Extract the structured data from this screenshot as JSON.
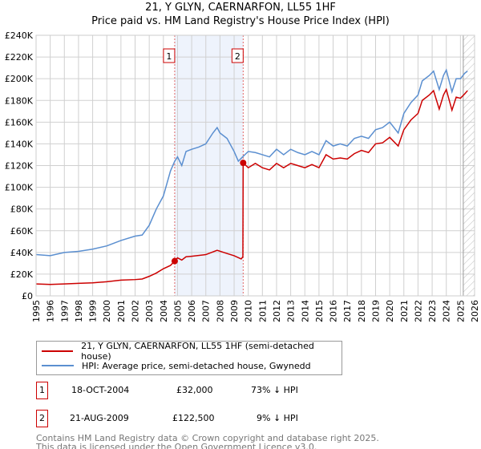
{
  "chart_data": {
    "type": "line",
    "title": "21, Y GLYN, CAERNARFON, LL55 1HF",
    "subtitle": "Price paid vs. HM Land Registry's House Price Index (HPI)",
    "xlim": [
      1995,
      2026
    ],
    "ylim": [
      0,
      240000
    ],
    "x_ticks": [
      "1995",
      "1996",
      "1997",
      "1998",
      "1999",
      "2000",
      "2001",
      "2002",
      "2003",
      "2004",
      "2005",
      "2006",
      "2007",
      "2008",
      "2009",
      "2010",
      "2011",
      "2012",
      "2013",
      "2014",
      "2015",
      "2016",
      "2017",
      "2018",
      "2019",
      "2020",
      "2021",
      "2022",
      "2023",
      "2024",
      "2025",
      "2026"
    ],
    "y_ticks": [
      {
        "v": 0,
        "label": "£0"
      },
      {
        "v": 20000,
        "label": "£20K"
      },
      {
        "v": 40000,
        "label": "£40K"
      },
      {
        "v": 60000,
        "label": "£60K"
      },
      {
        "v": 80000,
        "label": "£80K"
      },
      {
        "v": 100000,
        "label": "£100K"
      },
      {
        "v": 120000,
        "label": "£120K"
      },
      {
        "v": 140000,
        "label": "£140K"
      },
      {
        "v": 160000,
        "label": "£160K"
      },
      {
        "v": 180000,
        "label": "£180K"
      },
      {
        "v": 200000,
        "label": "£200K"
      },
      {
        "v": 220000,
        "label": "£220K"
      },
      {
        "v": 240000,
        "label": "£240K"
      }
    ],
    "grid": true,
    "shaded_range": [
      2004.8,
      2009.64
    ],
    "forecast_hatch_from": 2025.2,
    "series": [
      {
        "name": "21, Y GLYN, CAERNARFON, LL55 1HF (semi-detached house)",
        "color": "#cc0000",
        "x": [
          1995,
          1996,
          1997,
          1998,
          1999,
          2000,
          2001,
          2002,
          2002.5,
          2003,
          2003.5,
          2004,
          2004.5,
          2004.8,
          2005,
          2005.3,
          2005.6,
          2006,
          2007,
          2007.8,
          2008.5,
          2009,
          2009.5,
          2009.62,
          2009.64,
          2010,
          2010.5,
          2011,
          2011.5,
          2012,
          2012.5,
          2013,
          2013.5,
          2014,
          2014.5,
          2015,
          2015.5,
          2016,
          2016.5,
          2017,
          2017.5,
          2018,
          2018.5,
          2019,
          2019.5,
          2020,
          2020.6,
          2021,
          2021.5,
          2022,
          2022.3,
          2022.8,
          2023.1,
          2023.5,
          2023.8,
          2024,
          2024.4,
          2024.7,
          2025,
          2025.3,
          2025.5
        ],
        "y": [
          11,
          10.5,
          11,
          11.5,
          12,
          13,
          14.5,
          15,
          15.5,
          18,
          21,
          25,
          28,
          32,
          35,
          33,
          36,
          36.5,
          38,
          42,
          39,
          37,
          34,
          36,
          122.5,
          118,
          122,
          118,
          116,
          122,
          118,
          122,
          120,
          118,
          121,
          118,
          130,
          126,
          127,
          126,
          131,
          134,
          132,
          140,
          141,
          146,
          138,
          153,
          162,
          168,
          180,
          185,
          189,
          172,
          185,
          190,
          171,
          183,
          182,
          186,
          189
        ]
      },
      {
        "name": "HPI: Average price, semi-detached house, Gwynedd",
        "color": "#5b8fd0",
        "x": [
          1995,
          1996,
          1997,
          1998,
          1999,
          2000,
          2001,
          2002,
          2002.5,
          2003,
          2003.5,
          2004,
          2004.5,
          2004.8,
          2005,
          2005.3,
          2005.6,
          2006,
          2006.5,
          2007,
          2007.5,
          2007.8,
          2008,
          2008.5,
          2009,
          2009.3,
          2009.6,
          2010,
          2010.5,
          2011,
          2011.5,
          2012,
          2012.5,
          2013,
          2013.5,
          2014,
          2014.5,
          2015,
          2015.5,
          2016,
          2016.5,
          2017,
          2017.5,
          2018,
          2018.5,
          2019,
          2019.5,
          2020,
          2020.6,
          2021,
          2021.5,
          2022,
          2022.3,
          2022.8,
          2023.1,
          2023.5,
          2023.8,
          2024,
          2024.4,
          2024.7,
          2025,
          2025.3,
          2025.5
        ],
        "y": [
          38,
          37,
          40,
          41,
          43,
          46,
          51,
          55,
          56,
          65,
          80,
          92,
          115,
          124,
          128,
          120,
          133,
          135,
          137,
          140,
          150,
          155,
          150,
          145,
          133,
          124,
          128,
          133,
          132,
          130,
          128,
          135,
          130,
          135,
          132,
          130,
          133,
          130,
          143,
          138,
          140,
          138,
          145,
          147,
          145,
          153,
          155,
          160,
          150,
          168,
          178,
          185,
          198,
          203,
          207,
          190,
          203,
          208,
          188,
          200,
          200,
          205,
          207
        ]
      }
    ],
    "annotations": [
      {
        "label": "1",
        "x": 2004.8,
        "y": 32000
      },
      {
        "label": "2",
        "x": 2009.64,
        "y": 122500
      }
    ]
  },
  "legend": {
    "items": [
      {
        "label": "21, Y GLYN, CAERNARFON, LL55 1HF (semi-detached house)",
        "color": "#cc0000"
      },
      {
        "label": "HPI: Average price, semi-detached house, Gwynedd",
        "color": "#5b8fd0"
      }
    ]
  },
  "transactions": [
    {
      "num": "1",
      "date": "18-OCT-2004",
      "price": "£32,000",
      "hpi": "73% ↓ HPI"
    },
    {
      "num": "2",
      "date": "21-AUG-2009",
      "price": "£122,500",
      "hpi": "9% ↓ HPI"
    }
  ],
  "footer": {
    "line1": "Contains HM Land Registry data © Crown copyright and database right 2025.",
    "line2": "This data is licensed under the Open Government Licence v3.0."
  }
}
